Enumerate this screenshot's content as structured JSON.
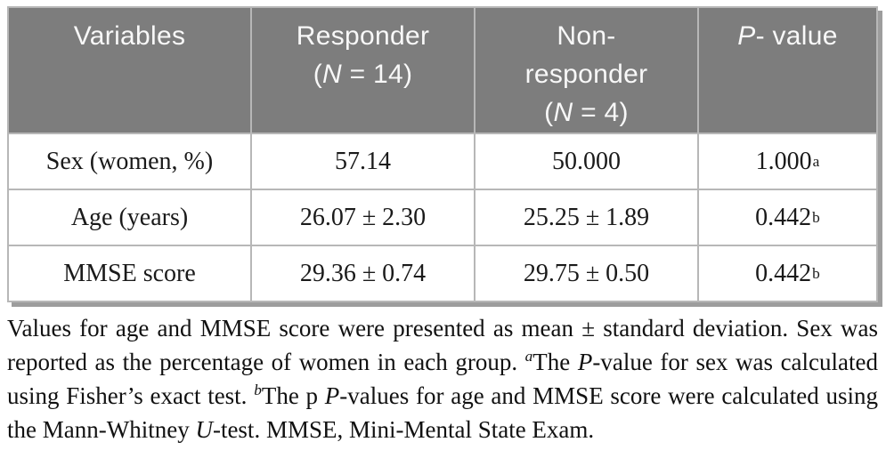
{
  "colors": {
    "header_bg": "#7d7d7d",
    "header_text": "#f8f8f8",
    "grid_line": "#b7b7b7",
    "outer_shadow": "#9d9d9d",
    "body_text": "#1a1a1a"
  },
  "table": {
    "header": {
      "variables": "Variables",
      "responder": {
        "line1": "Responder",
        "open": "(",
        "n": "N",
        "count": " = 14)"
      },
      "nonresponder": {
        "line1": "Non-",
        "line2": "responder",
        "open": "(",
        "n": "N",
        "count": " = 4)"
      },
      "pvalue": {
        "p": "P",
        "rest": "- value"
      }
    },
    "rows": [
      {
        "variable": "Sex (women, %)",
        "responder": "57.14",
        "nonresponder": "50.000",
        "p": "1.000",
        "sup": "a"
      },
      {
        "variable": "Age (years)",
        "responder": "26.07 ± 2.30",
        "nonresponder": "25.25 ± 1.89",
        "p": "0.442",
        "sup": "b"
      },
      {
        "variable": "MMSE score",
        "responder": "29.36 ± 0.74",
        "nonresponder": "29.75 ± 0.50",
        "p": "0.442",
        "sup": "b"
      }
    ]
  },
  "footnote": {
    "s1": "Values for age and MMSE score were presented as mean ± standard deviation. Sex was reported as the percentage of women in each group. ",
    "sup_a": "a",
    "s2": "The ",
    "p1": "P",
    "s3": "-value for sex was calculated using Fisher’s exact test. ",
    "sup_b": "b",
    "s4": "The p ",
    "p2": "P",
    "s5": "-values for age and MMSE score were calculated using the Mann-Whitney ",
    "u": "U",
    "s6": "-test. MMSE, Mini-Mental State Exam."
  }
}
